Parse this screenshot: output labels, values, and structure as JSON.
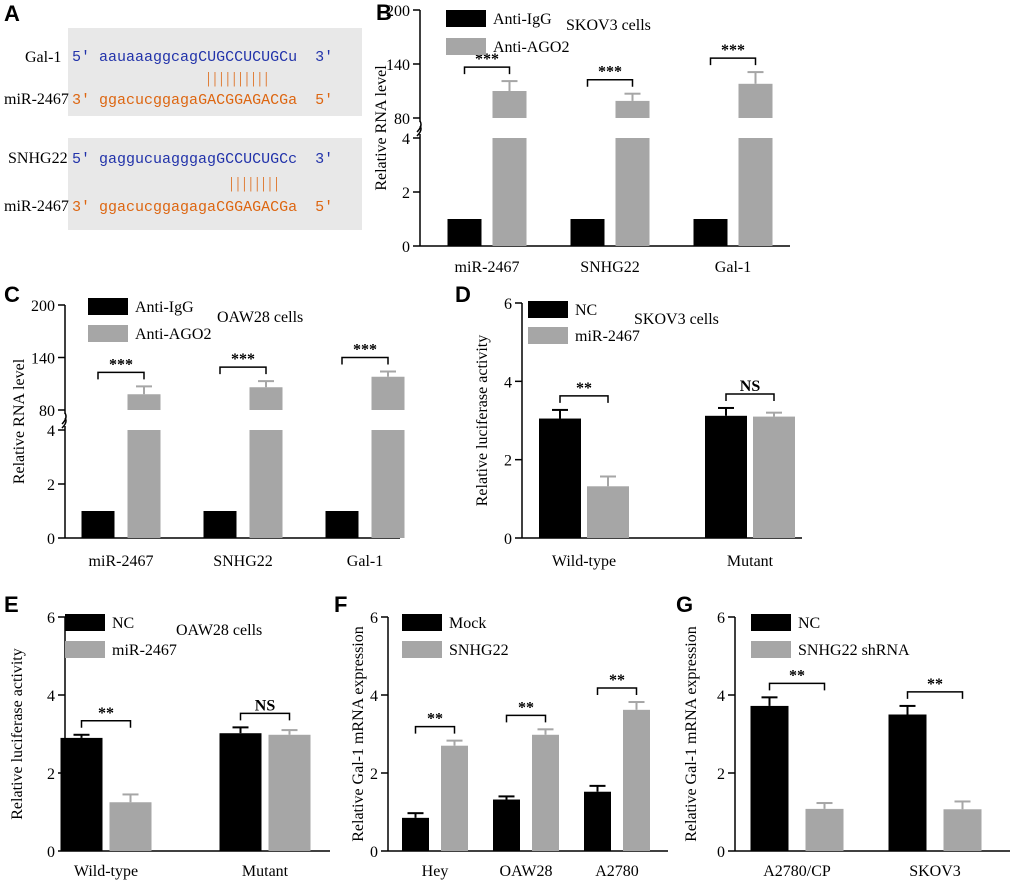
{
  "figure": {
    "panel_A": {
      "label": "A",
      "box1": {
        "row1": {
          "name": "Gal-1",
          "p5": "5'",
          "lower": "aauaaaggcag",
          "upper": "CUGCCUCUGC",
          "tail": "u",
          "p3": "3'"
        },
        "pairs": "||||||||||",
        "row2": {
          "name": "miR-2467",
          "p3": "3'",
          "lower": "ggacucggaga",
          "upper": "GACGGAGACG",
          "tail": "a",
          "p5": "5'"
        }
      },
      "box2": {
        "row1": {
          "name": "SNHG22",
          "p5": "5'",
          "lower": "gaggucuagggag",
          "upper": "GCCUCUGC",
          "tail": "c",
          "p3": "3'"
        },
        "pairs": "||||||||",
        "row2": {
          "name": "miR-2467",
          "p3": "3'",
          "lower": "ggacucggagaga",
          "upper": "CGGAGACG",
          "tail": "a",
          "p5": "5'"
        }
      },
      "colors": {
        "top": "#2233aa",
        "bottom": "#dd6611",
        "pair": "#dd6611",
        "box": "#e8e8e8"
      }
    },
    "colors": {
      "black": "#000000",
      "gray": "#a6a6a6"
    }
  },
  "chart_data": [
    {
      "panel": "B",
      "type": "bar",
      "broken_axis": true,
      "title": "SKOV3 cells",
      "ylabel": "Relative RNA level",
      "xlabel": "",
      "categories": [
        "miR-2467",
        "SNHG22",
        "Gal-1"
      ],
      "series": [
        {
          "name": "Anti-IgG",
          "color": "#000000",
          "values": [
            1,
            1,
            1
          ],
          "errors": [
            0,
            0,
            0
          ]
        },
        {
          "name": "Anti-AGO2",
          "color": "#a6a6a6",
          "values": [
            110,
            99,
            118
          ],
          "errors": [
            11,
            8,
            13
          ]
        }
      ],
      "lower_ylim": [
        0,
        4
      ],
      "lower_ticks": [
        "0",
        "2",
        "4"
      ],
      "upper_ylim": [
        80,
        200
      ],
      "upper_ticks": [
        "80",
        "140",
        "200"
      ],
      "significance": [
        "***",
        "***",
        "***"
      ]
    },
    {
      "panel": "C",
      "type": "bar",
      "broken_axis": true,
      "title": "OAW28 cells",
      "ylabel": "Relative RNA level",
      "xlabel": "",
      "categories": [
        "miR-2467",
        "SNHG22",
        "Gal-1"
      ],
      "series": [
        {
          "name": "Anti-IgG",
          "color": "#000000",
          "values": [
            1,
            1,
            1
          ],
          "errors": [
            0,
            0,
            0
          ]
        },
        {
          "name": "Anti-AGO2",
          "color": "#a6a6a6",
          "values": [
            98,
            106,
            118
          ],
          "errors": [
            9,
            7,
            6
          ]
        }
      ],
      "lower_ylim": [
        0,
        4
      ],
      "lower_ticks": [
        "0",
        "2",
        "4"
      ],
      "upper_ylim": [
        80,
        200
      ],
      "upper_ticks": [
        "80",
        "140",
        "200"
      ],
      "significance": [
        "***",
        "***",
        "***"
      ]
    },
    {
      "panel": "D",
      "type": "bar",
      "title": "SKOV3 cells",
      "ylabel": "Relative luciferase activity",
      "xlabel": "",
      "categories": [
        "Wild-type",
        "Mutant"
      ],
      "series": [
        {
          "name": "NC",
          "color": "#000000",
          "values": [
            3.05,
            3.12
          ],
          "errors": [
            0.22,
            0.2
          ]
        },
        {
          "name": "miR-2467",
          "color": "#a6a6a6",
          "values": [
            1.32,
            3.1
          ],
          "errors": [
            0.25,
            0.1
          ]
        }
      ],
      "ylim": [
        0,
        6
      ],
      "yticks": [
        "0",
        "2",
        "4",
        "6"
      ],
      "significance": [
        "**",
        "NS"
      ]
    },
    {
      "panel": "E",
      "type": "bar",
      "title": "OAW28 cells",
      "ylabel": "Relative luciferase activity",
      "xlabel": "",
      "categories": [
        "Wild-type",
        "Mutant"
      ],
      "series": [
        {
          "name": "NC",
          "color": "#000000",
          "values": [
            2.9,
            3.02
          ],
          "errors": [
            0.08,
            0.15
          ]
        },
        {
          "name": "miR-2467",
          "color": "#a6a6a6",
          "values": [
            1.25,
            2.98
          ],
          "errors": [
            0.2,
            0.12
          ]
        }
      ],
      "ylim": [
        0,
        6
      ],
      "yticks": [
        "0",
        "2",
        "4",
        "6"
      ],
      "significance": [
        "**",
        "NS"
      ]
    },
    {
      "panel": "F",
      "type": "bar",
      "title": "",
      "ylabel": "Relative Gal-1 mRNA expression",
      "xlabel": "",
      "categories": [
        "Hey",
        "OAW28",
        "A2780"
      ],
      "series": [
        {
          "name": "Mock",
          "color": "#000000",
          "values": [
            0.85,
            1.32,
            1.52
          ],
          "errors": [
            0.12,
            0.08,
            0.15
          ]
        },
        {
          "name": "SNHG22",
          "color": "#a6a6a6",
          "values": [
            2.7,
            2.98,
            3.62
          ],
          "errors": [
            0.13,
            0.14,
            0.2
          ]
        }
      ],
      "ylim": [
        0,
        6
      ],
      "yticks": [
        "0",
        "2",
        "4",
        "6"
      ],
      "significance": [
        "**",
        "**",
        "**"
      ]
    },
    {
      "panel": "G",
      "type": "bar",
      "title": "",
      "ylabel": "Relative Gal-1 mRNA expression",
      "xlabel": "",
      "categories": [
        "A2780/CP",
        "SKOV3"
      ],
      "series": [
        {
          "name": "NC",
          "color": "#000000",
          "values": [
            3.72,
            3.5
          ],
          "errors": [
            0.22,
            0.22
          ]
        },
        {
          "name": "SNHG22 shRNA",
          "color": "#a6a6a6",
          "values": [
            1.08,
            1.07
          ],
          "errors": [
            0.15,
            0.2
          ]
        }
      ],
      "ylim": [
        0,
        6
      ],
      "yticks": [
        "0",
        "2",
        "4",
        "6"
      ],
      "significance": [
        "**",
        "**"
      ]
    }
  ]
}
